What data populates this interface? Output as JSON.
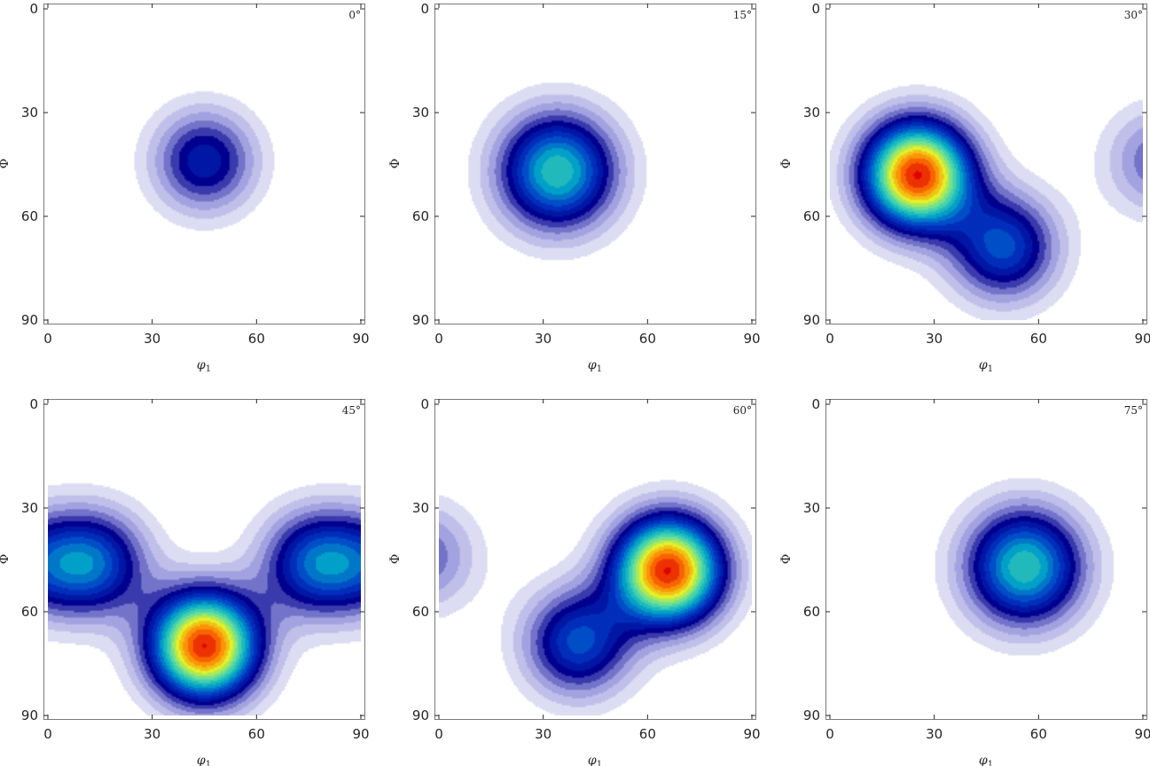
{
  "chart_data": {
    "type": "heatmap",
    "xlabel": "φ",
    "xlabel_subscript": "1",
    "ylabel": "Φ",
    "x_ticks": [
      0,
      30,
      60,
      90
    ],
    "y_ticks": [
      0,
      30,
      60,
      90
    ],
    "xlim": [
      0,
      90
    ],
    "ylim": [
      0,
      90
    ],
    "y_inverted": true,
    "contour_levels": 20,
    "colors": {
      "min_contour": "#dcdcf2",
      "mid_contour": "#00008f",
      "peak": "#e00000",
      "frame": "#7a7a7a"
    },
    "panels": [
      {
        "label": "0°",
        "sections_peaks": [
          {
            "phi1": 45,
            "Phi": 44,
            "intensity": 0.38,
            "sx": 10.5,
            "sy": 10.5
          }
        ]
      },
      {
        "label": "15°",
        "sections_peaks": [
          {
            "phi1": 34,
            "Phi": 47,
            "intensity": 0.62,
            "sx": 12,
            "sy": 12
          }
        ]
      },
      {
        "label": "30°",
        "sections_peaks": [
          {
            "phi1": 25,
            "Phi": 48,
            "intensity": 1.0,
            "sx": 11,
            "sy": 11
          },
          {
            "phi1": 50,
            "Phi": 69,
            "intensity": 0.45,
            "sx": 11,
            "sy": 11
          },
          {
            "phi1": 95,
            "Phi": 44,
            "intensity": 0.25,
            "sx": 11,
            "sy": 11
          }
        ]
      },
      {
        "label": "45°",
        "sections_peaks": [
          {
            "phi1": 45,
            "Phi": 70,
            "intensity": 1.0,
            "sx": 11,
            "sy": 11
          },
          {
            "phi1": 13,
            "Phi": 46,
            "intensity": 0.45,
            "sx": 11,
            "sy": 11
          },
          {
            "phi1": 77,
            "Phi": 46,
            "intensity": 0.45,
            "sx": 11,
            "sy": 11
          },
          {
            "phi1": -5,
            "Phi": 46,
            "intensity": 0.3,
            "sx": 11,
            "sy": 11
          },
          {
            "phi1": 95,
            "Phi": 46,
            "intensity": 0.3,
            "sx": 11,
            "sy": 11
          }
        ]
      },
      {
        "label": "60°",
        "sections_peaks": [
          {
            "phi1": 66,
            "Phi": 48,
            "intensity": 1.0,
            "sx": 11,
            "sy": 11
          },
          {
            "phi1": 40,
            "Phi": 69,
            "intensity": 0.45,
            "sx": 11,
            "sy": 11
          },
          {
            "phi1": -5,
            "Phi": 44,
            "intensity": 0.25,
            "sx": 11,
            "sy": 11
          }
        ]
      },
      {
        "label": "75°",
        "sections_peaks": [
          {
            "phi1": 56,
            "Phi": 47,
            "intensity": 0.62,
            "sx": 12,
            "sy": 12
          }
        ]
      }
    ]
  }
}
